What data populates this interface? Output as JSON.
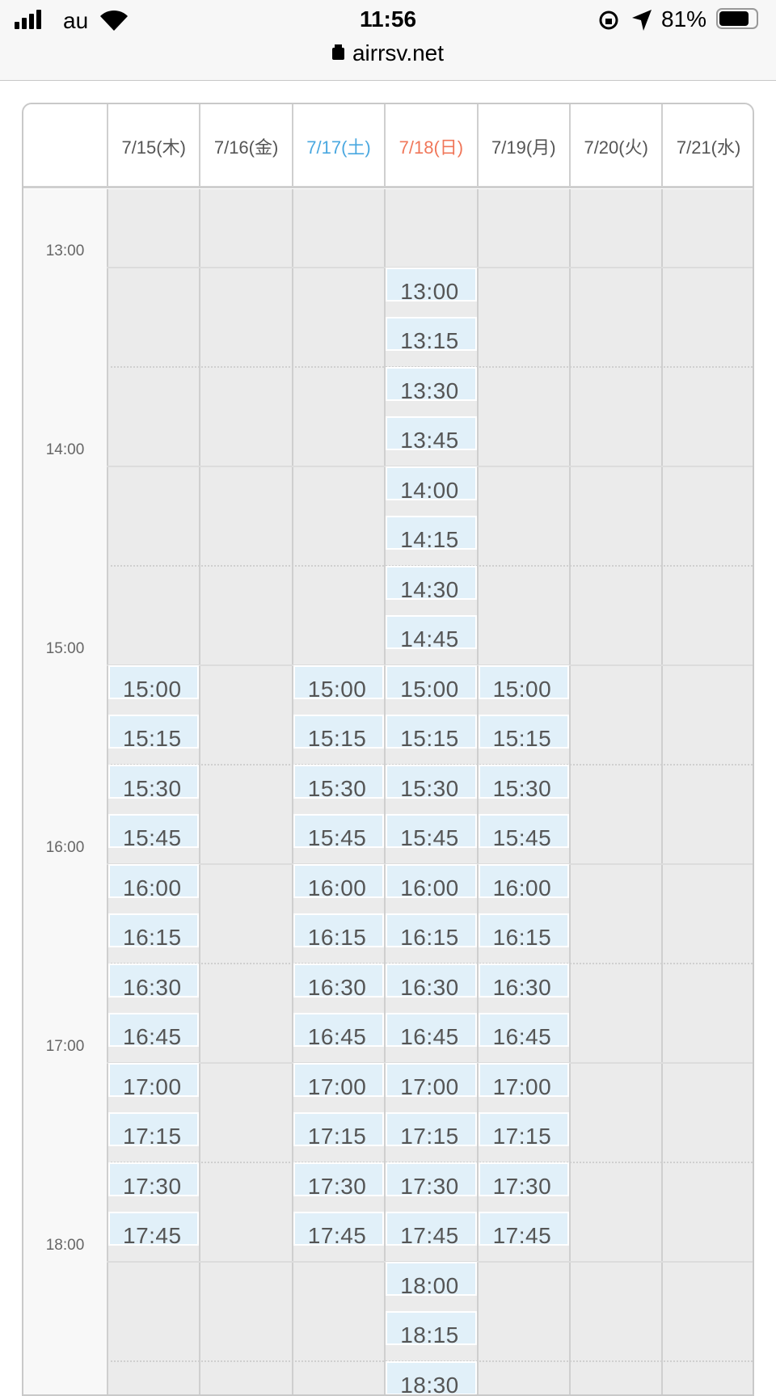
{
  "status_bar": {
    "carrier": "au",
    "time": "11:56",
    "battery": "81%",
    "battery_level": 0.81,
    "icons": [
      "signal-icon",
      "wifi-icon",
      "rotation-lock-icon",
      "location-icon",
      "battery-icon"
    ]
  },
  "address_bar": {
    "url": "airrsv.net",
    "icon": "lock-icon"
  },
  "colors": {
    "saturday": "#4aa8e0",
    "sunday": "#f0775a",
    "available": "#e1f0f9",
    "unavailable": "#ebebeb"
  },
  "hours": [
    "13:00",
    "14:00",
    "15:00",
    "16:00",
    "17:00",
    "18:00"
  ],
  "days": [
    {
      "label": "7/15(木)",
      "type": "weekday",
      "slots": [
        "15:00",
        "15:15",
        "15:30",
        "15:45",
        "16:00",
        "16:15",
        "16:30",
        "16:45",
        "17:00",
        "17:15",
        "17:30",
        "17:45"
      ]
    },
    {
      "label": "7/16(金)",
      "type": "weekday",
      "slots": []
    },
    {
      "label": "7/17(土)",
      "type": "saturday",
      "slots": [
        "15:00",
        "15:15",
        "15:30",
        "15:45",
        "16:00",
        "16:15",
        "16:30",
        "16:45",
        "17:00",
        "17:15",
        "17:30",
        "17:45"
      ]
    },
    {
      "label": "7/18(日)",
      "type": "sunday",
      "slots": [
        "13:00",
        "13:15",
        "13:30",
        "13:45",
        "14:00",
        "14:15",
        "14:30",
        "14:45",
        "15:00",
        "15:15",
        "15:30",
        "15:45",
        "16:00",
        "16:15",
        "16:30",
        "16:45",
        "17:00",
        "17:15",
        "17:30",
        "17:45",
        "18:00",
        "18:15",
        "18:30"
      ]
    },
    {
      "label": "7/19(月)",
      "type": "weekday",
      "slots": [
        "15:00",
        "15:15",
        "15:30",
        "15:45",
        "16:00",
        "16:15",
        "16:30",
        "16:45",
        "17:00",
        "17:15",
        "17:30",
        "17:45"
      ]
    },
    {
      "label": "7/20(火)",
      "type": "weekday",
      "slots": []
    },
    {
      "label": "7/21(水)",
      "type": "weekday",
      "slots": []
    }
  ]
}
